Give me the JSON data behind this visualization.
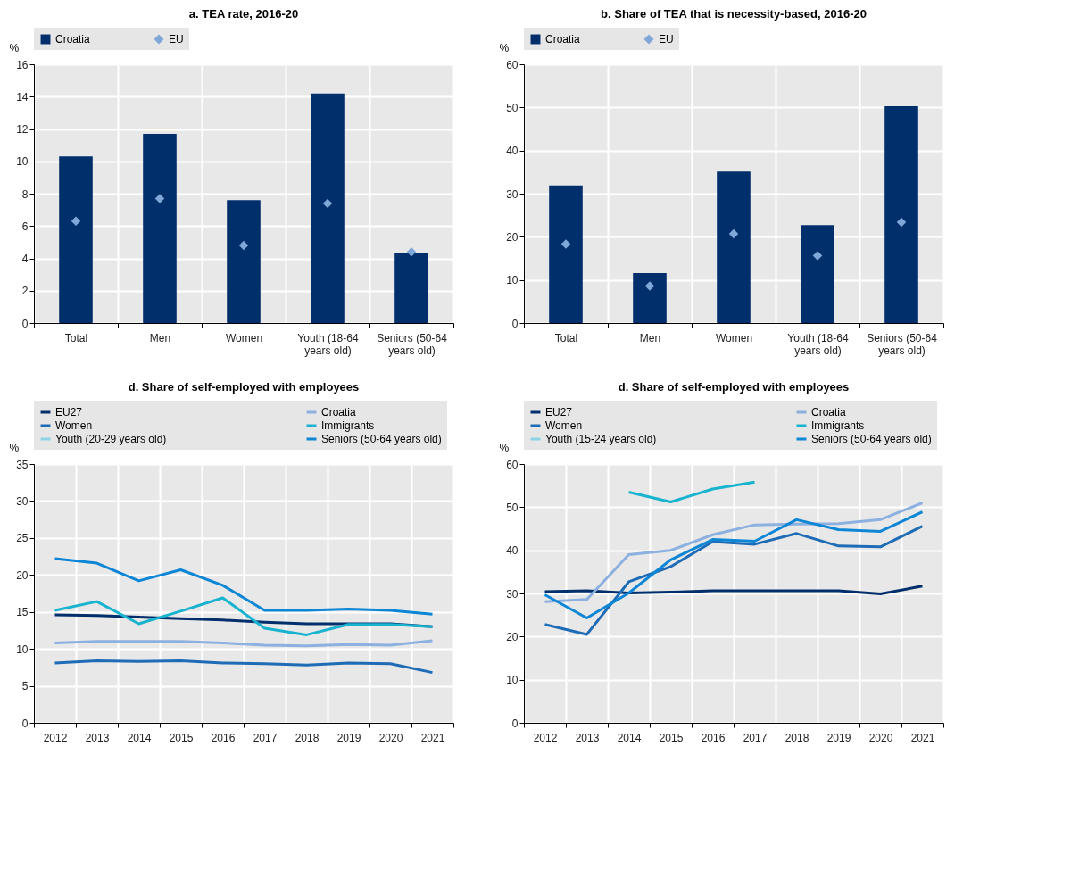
{
  "chart_data": [
    {
      "type": "bar",
      "title": "a. TEA rate,  2016-20",
      "ylabel": "%",
      "categories": [
        "Total",
        "Men",
        "Women",
        "Youth (18-64 years old)",
        "Seniors (50-64 years old)"
      ],
      "ylim": [
        0,
        16
      ],
      "yticks": [
        0,
        2,
        4,
        6,
        8,
        10,
        12,
        14,
        16
      ],
      "grid": true,
      "legend": "top",
      "marker": "diamond",
      "series": [
        {
          "name": "Croatia",
          "type": "bar",
          "color": "#002f6c",
          "values": [
            10.3,
            11.7,
            7.6,
            14.2,
            4.3
          ]
        },
        {
          "name": "EU",
          "type": "scatter",
          "color": "#7fa8d9",
          "values": [
            6.3,
            7.7,
            4.8,
            7.4,
            4.4
          ]
        }
      ]
    },
    {
      "type": "bar",
      "title": "b. Share of TEA that is necessity-based, 2016-20",
      "ylabel": "%",
      "categories": [
        "Total",
        "Men",
        "Women",
        "Youth (18-64 years old)",
        "Seniors (50-64 years old)"
      ],
      "ylim": [
        0,
        60
      ],
      "yticks": [
        0,
        10,
        20,
        30,
        40,
        50,
        60
      ],
      "grid": true,
      "legend": "top",
      "marker": "diamond",
      "series": [
        {
          "name": "Croatia",
          "type": "bar",
          "color": "#002f6c",
          "values": [
            31.9,
            11.6,
            35.1,
            22.7,
            50.3
          ]
        },
        {
          "name": "EU",
          "type": "scatter",
          "color": "#7fa8d9",
          "values": [
            18.3,
            8.6,
            20.7,
            15.6,
            23.4
          ]
        }
      ]
    },
    {
      "type": "line",
      "title": "d. Share of self-employed with employees",
      "ylabel": "%",
      "categories": [
        "2012",
        "2013",
        "2014",
        "2015",
        "2016",
        "2017",
        "2018",
        "2019",
        "2020",
        "2021"
      ],
      "ylim": [
        0,
        35
      ],
      "yticks": [
        0,
        5,
        10,
        15,
        20,
        25,
        30,
        35
      ],
      "grid": true,
      "legend": "top",
      "line_style": "solid",
      "series": [
        {
          "name": "EU27",
          "color": "#002f6c",
          "values": [
            14.6,
            14.5,
            14.3,
            14.1,
            13.9,
            13.6,
            13.4,
            13.4,
            13.4,
            13.0
          ]
        },
        {
          "name": "Croatia",
          "color": "#8cb0e0",
          "values": [
            10.8,
            11.0,
            11.0,
            11.0,
            10.8,
            10.5,
            10.4,
            10.6,
            10.5,
            11.1
          ]
        },
        {
          "name": "Women",
          "color": "#1f6cb6",
          "values": [
            8.1,
            8.4,
            8.3,
            8.4,
            8.1,
            8.0,
            7.8,
            8.1,
            8.0,
            6.8
          ]
        },
        {
          "name": "Immigrants",
          "color": "#17b3cf",
          "values": [
            15.2,
            16.4,
            13.4,
            15.1,
            16.9,
            12.8,
            11.9,
            13.3,
            13.3,
            13.0
          ]
        },
        {
          "name": "Youth (20-29 years old)",
          "color": "#8ed3e6",
          "values": [
            null,
            null,
            null,
            null,
            null,
            null,
            null,
            null,
            null,
            null
          ]
        },
        {
          "name": "Seniors (50-64 years old)",
          "color": "#0d86d6",
          "values": [
            22.2,
            21.6,
            19.2,
            20.7,
            18.6,
            15.2,
            15.2,
            15.4,
            15.2,
            14.7
          ]
        }
      ]
    },
    {
      "type": "line",
      "title": "d. Share of self-employed with employees",
      "ylabel": "%",
      "categories": [
        "2012",
        "2013",
        "2014",
        "2015",
        "2016",
        "2017",
        "2018",
        "2019",
        "2020",
        "2021"
      ],
      "ylim": [
        0,
        60
      ],
      "yticks": [
        0,
        10,
        20,
        30,
        40,
        50,
        60
      ],
      "grid": true,
      "legend": "top",
      "line_style": "solid",
      "series": [
        {
          "name": "EU27",
          "color": "#002f6c",
          "values": [
            30.4,
            30.6,
            30.1,
            30.3,
            30.6,
            30.6,
            30.6,
            30.6,
            29.9,
            31.7
          ]
        },
        {
          "name": "Croatia",
          "color": "#8cb0e0",
          "values": [
            28.1,
            28.6,
            39.0,
            40.0,
            43.6,
            45.9,
            46.1,
            46.2,
            47.1,
            51.0
          ]
        },
        {
          "name": "Women",
          "color": "#1f6cb6",
          "values": [
            22.8,
            20.5,
            32.7,
            36.2,
            42.0,
            41.4,
            43.9,
            41.0,
            40.8,
            45.6
          ]
        },
        {
          "name": "Immigrants",
          "color": "#17b3cf",
          "values": [
            null,
            null,
            53.5,
            51.2,
            54.2,
            55.8,
            null,
            null,
            null,
            null
          ]
        },
        {
          "name": "Youth (15-24 years old)",
          "color": "#8ed3e6",
          "values": [
            null,
            null,
            null,
            null,
            null,
            null,
            null,
            null,
            null,
            null
          ]
        },
        {
          "name": "Seniors (50-64 years old)",
          "color": "#0d86d6",
          "values": [
            29.7,
            24.3,
            30.1,
            37.8,
            42.5,
            42.1,
            47.1,
            44.8,
            44.4,
            48.9
          ]
        }
      ]
    }
  ]
}
